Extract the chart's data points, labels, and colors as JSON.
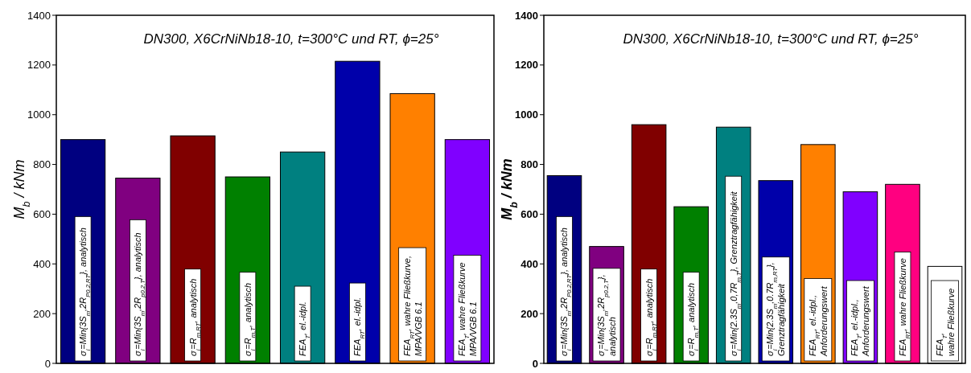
{
  "chart_data": [
    {
      "type": "bar",
      "title": "DN300, X6CrNiNb18-10, t=300°C und RT, ϕ=25°",
      "ylabel": "M$_{b}$ / kNm",
      "categories": [
        "σ$_{l}$=Min{3S$_{m}$,2R$_{P0.2,RT}$}, analytisch",
        "σ$_{l}$=Min{3S$_{m}$,2R$_{p0.2,T}$}, analytisch",
        "σ$_{l}$=R$_{m,RT}$, analytisch",
        "σ$_{l}$=R$_{m,T}$, analytisch",
        "FEA$_{T}$, el.-idpl.",
        "FEA$_{RT}$, el.-idpl.",
        "FEA$_{RT}$, wahre Fließkurve,\nMPA/VGB 6.1",
        "FEA$_{T}$, wahre Fließkurve\nMPA/VGB 6.1"
      ],
      "values": [
        900,
        745,
        915,
        750,
        850,
        1215,
        1085,
        900
      ],
      "colors": [
        "#000080",
        "#800080",
        "#800000",
        "#008000",
        "#008080",
        "#0000aa",
        "#ff8000",
        "#8000ff"
      ],
      "ylim": [
        0,
        1400
      ],
      "yticks": [
        0,
        200,
        400,
        600,
        800,
        1000,
        1200,
        1400
      ]
    },
    {
      "type": "bar",
      "title": "DN300, X6CrNiNb18-10, t=300°C und RT, ϕ=25°",
      "ylabel": "M$_{b}$ / kNm",
      "categories": [
        "σ$_{l}$=Min{3S$_{m}$,2R$_{P0.2,RT}$}, analytisch",
        "σ$_{l}$=Min{3S$_{m}$,2R$_{p0.2,T}$}, analytisch",
        "σ$_{l}$=R$_{m,RT}$, analytisch",
        "σ$_{l}$=R$_{m,T}$, analytisch",
        "σ$_{l}$=Min{2.3S$_{m}$,0,7R$_{m,T}$}, Grenztragfähigkeit",
        "σ$_{l}$=Min{2.3S$_{m}$,0.7R$_{m,RT}$}, Grenztragfähigkeit",
        "FEA$_{RT}$, el.-idpl.,\nAnforderungswert",
        "FEA$_{T}$, el.-idpl.,\nAnforderungswert",
        "FEA$_{RT}$, wahre Fließkurve",
        "FEA$_{T}$, wahre Fließkurve"
      ],
      "values": [
        755,
        470,
        960,
        630,
        950,
        735,
        880,
        690,
        720,
        390
      ],
      "colors": [
        "#000080",
        "#800080",
        "#800000",
        "#008000",
        "#008080",
        "#0000aa",
        "#ff8000",
        "#8000ff",
        "#ff0080",
        "#ffffff"
      ],
      "ylim": [
        0,
        1400
      ],
      "yticks": [
        0,
        200,
        400,
        600,
        800,
        1000,
        1200,
        1400
      ]
    }
  ]
}
